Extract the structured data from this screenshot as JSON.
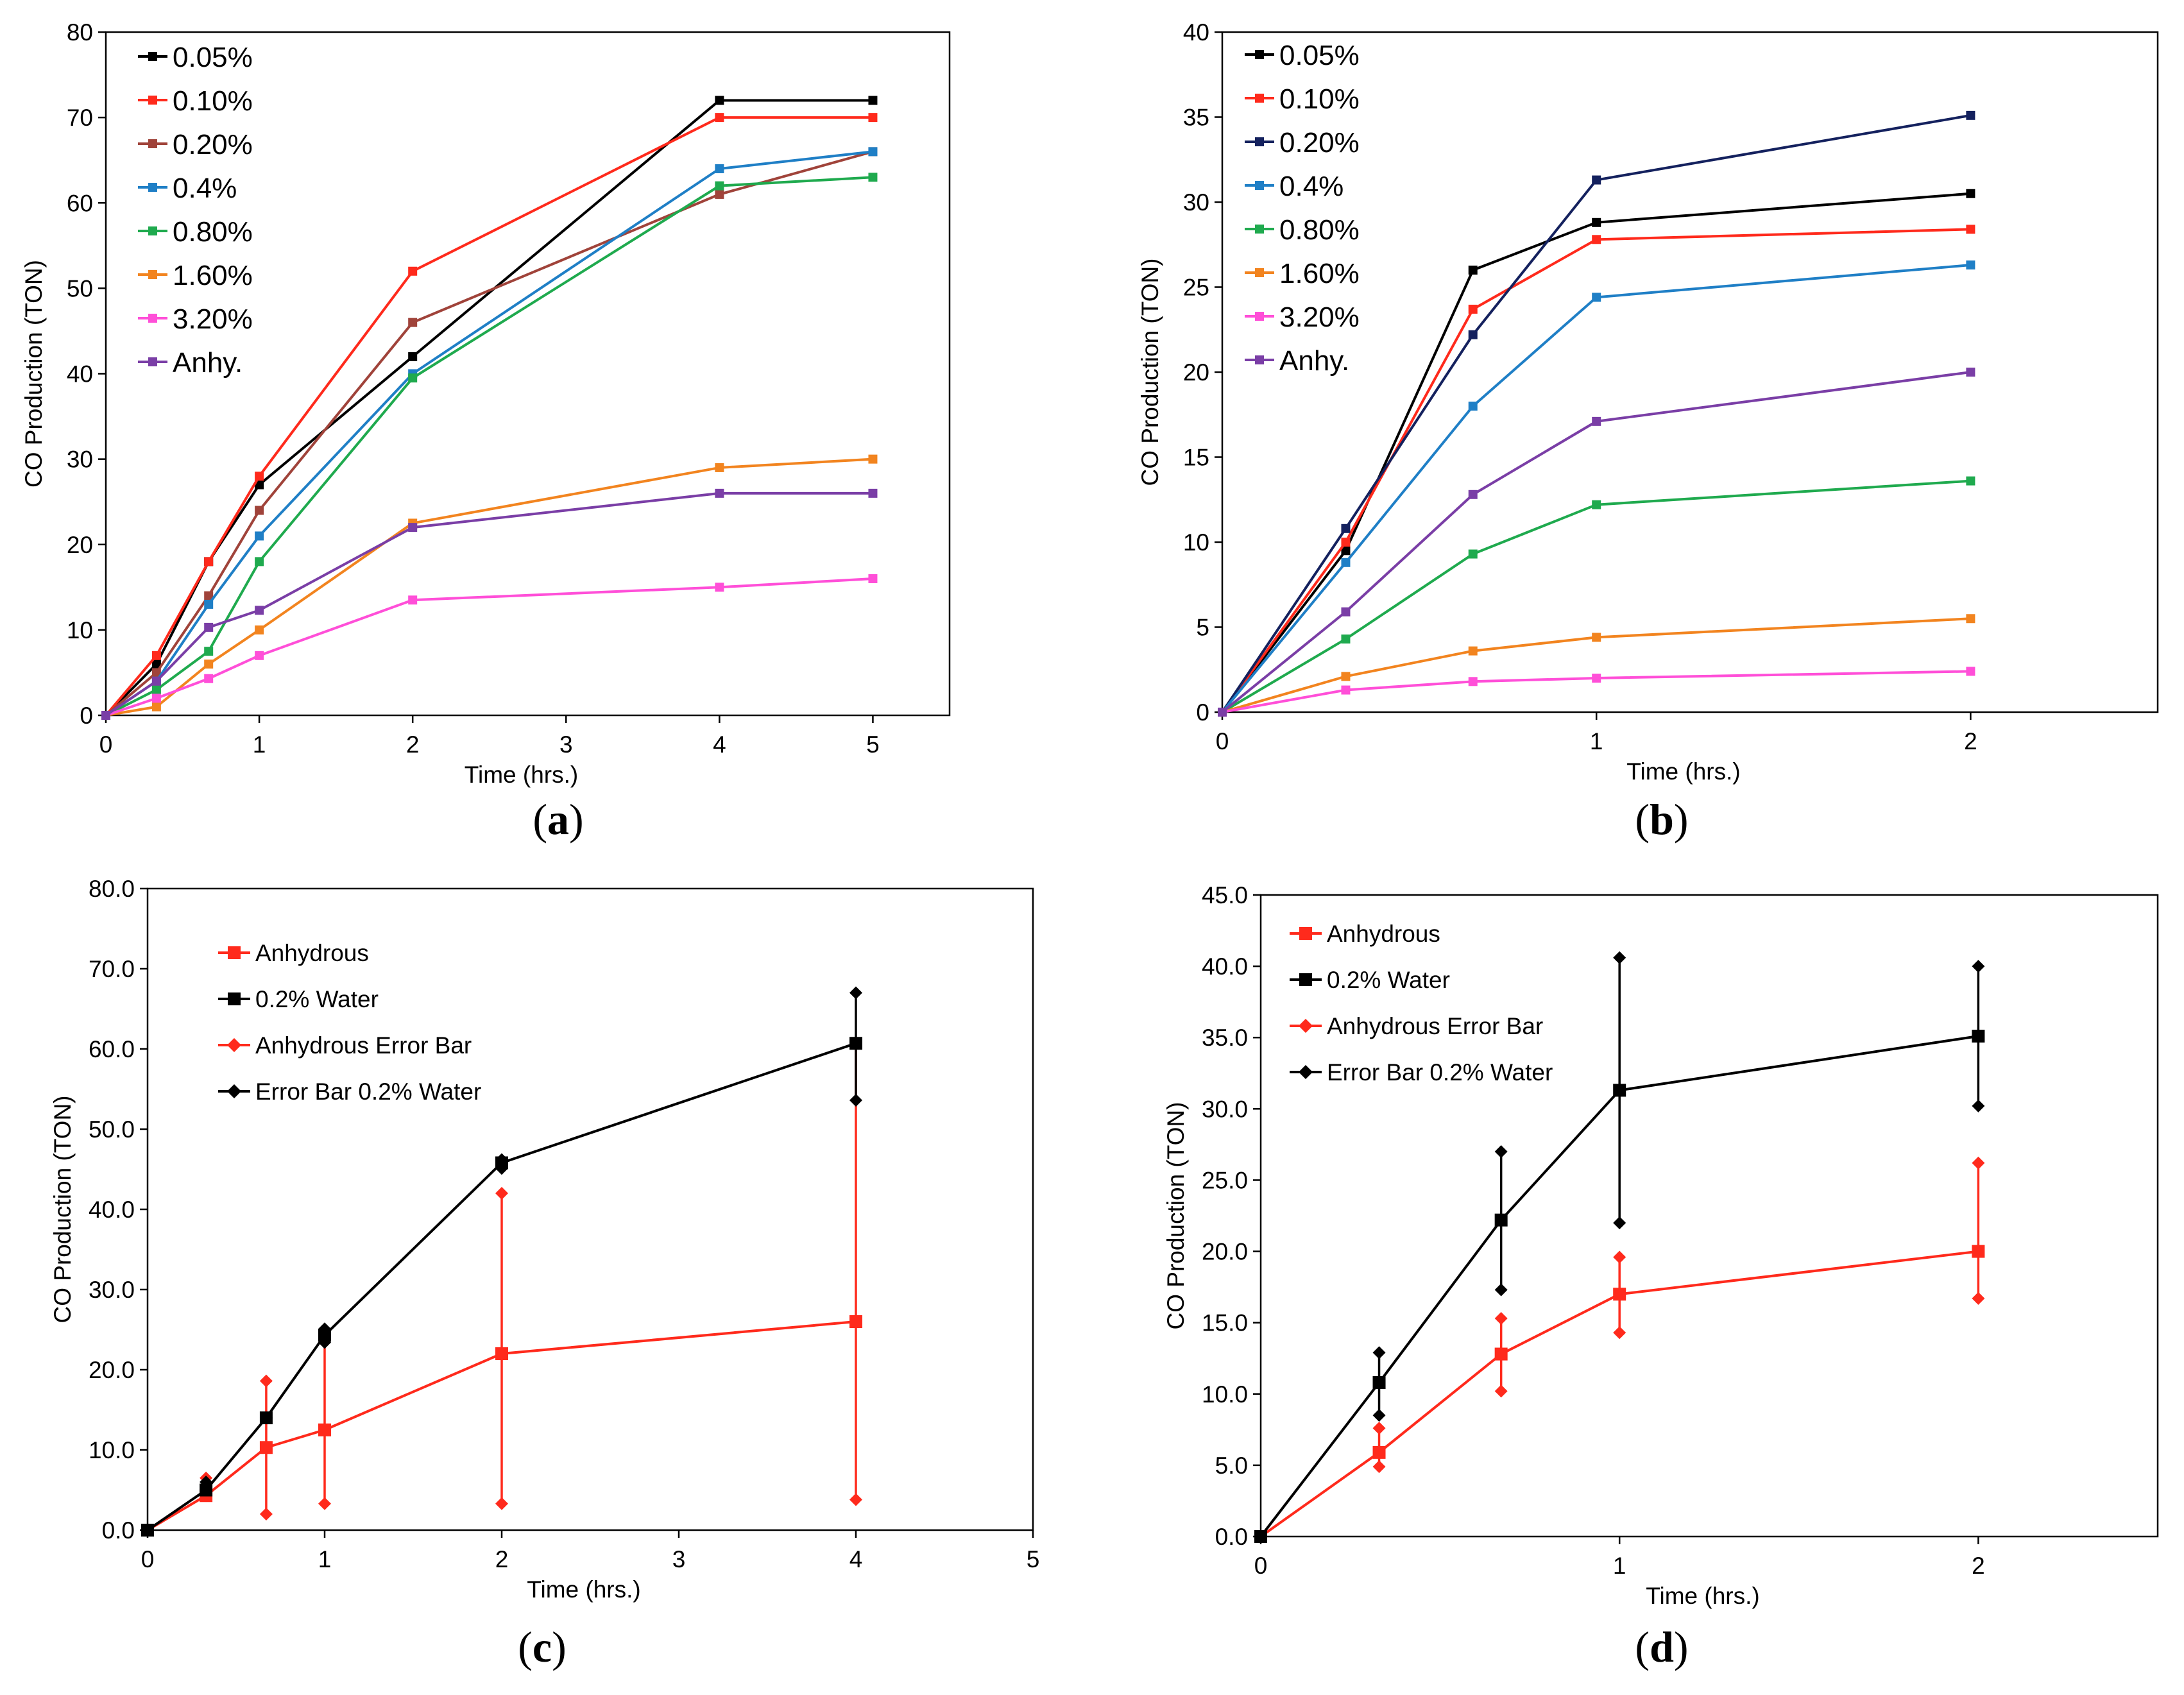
{
  "chart_data": [
    {
      "id": "a",
      "type": "line",
      "panel_label": "a",
      "xlabel": "Time (hrs.)",
      "ylabel": "CO Production (TON)",
      "xlim": [
        0,
        5.5
      ],
      "ylim": [
        0,
        80
      ],
      "xticks": [
        0,
        1,
        2,
        3,
        4,
        5
      ],
      "yticks": [
        0,
        10,
        20,
        30,
        40,
        50,
        60,
        70,
        80
      ],
      "ytick_labels": [
        "0",
        "10",
        "20",
        "30",
        "40",
        "50",
        "60",
        "70",
        "80"
      ],
      "legend_position": "top-left",
      "x": [
        0,
        0.33,
        0.67,
        1,
        2,
        4,
        5
      ],
      "series": [
        {
          "name": "0.05%",
          "color": "#000000",
          "values": [
            0,
            6,
            18,
            27,
            42,
            72,
            72
          ]
        },
        {
          "name": "0.10%",
          "color": "#ff2a1c",
          "values": [
            0,
            7,
            18,
            28,
            52,
            70,
            70
          ]
        },
        {
          "name": "0.20%",
          "color": "#a0433a",
          "values": [
            0,
            5,
            14,
            24,
            46,
            61,
            66
          ]
        },
        {
          "name": "0.4%",
          "color": "#1f7fc6",
          "values": [
            0,
            4,
            13,
            21,
            40,
            64,
            66
          ]
        },
        {
          "name": "0.80%",
          "color": "#1faa4e",
          "values": [
            0,
            3,
            7.5,
            18,
            39.5,
            62,
            63
          ]
        },
        {
          "name": "1.60%",
          "color": "#f2841f",
          "values": [
            0,
            1,
            6,
            10,
            22.5,
            29,
            30
          ]
        },
        {
          "name": "3.20%",
          "color": "#ff4fd8",
          "values": [
            0,
            2,
            4.3,
            7,
            13.5,
            15,
            16
          ]
        },
        {
          "name": "Anhy.",
          "color": "#7a3ea6",
          "values": [
            0,
            4,
            10.3,
            12.3,
            22,
            26,
            26
          ]
        }
      ]
    },
    {
      "id": "b",
      "type": "line",
      "panel_label": "b",
      "xlabel": "Time (hrs.)",
      "ylabel": "CO Production (TON)",
      "xlim": [
        0,
        2.5
      ],
      "ylim": [
        0,
        40
      ],
      "xticks": [
        0,
        1,
        2
      ],
      "yticks": [
        0,
        5,
        10,
        15,
        20,
        25,
        30,
        35,
        40
      ],
      "ytick_labels": [
        "0",
        "5",
        "10",
        "15",
        "20",
        "25",
        "30",
        "35",
        "40"
      ],
      "legend_position": "top-left",
      "x": [
        0,
        0.33,
        0.67,
        1,
        2
      ],
      "series": [
        {
          "name": "0.05%",
          "color": "#000000",
          "values": [
            0,
            9.5,
            26,
            28.8,
            30.5
          ]
        },
        {
          "name": "0.10%",
          "color": "#ff2a1c",
          "values": [
            0,
            10,
            23.7,
            27.8,
            28.4
          ]
        },
        {
          "name": "0.20%",
          "color": "#14215e",
          "values": [
            0,
            10.8,
            22.2,
            31.3,
            35.1
          ]
        },
        {
          "name": "0.4%",
          "color": "#1f7fc6",
          "values": [
            0,
            8.8,
            18,
            24.4,
            26.3
          ]
        },
        {
          "name": "0.80%",
          "color": "#1faa4e",
          "values": [
            0,
            4.3,
            9.3,
            12.2,
            13.6
          ]
        },
        {
          "name": "1.60%",
          "color": "#f2841f",
          "values": [
            0,
            2.1,
            3.6,
            4.4,
            5.5
          ]
        },
        {
          "name": "3.20%",
          "color": "#ff4fd8",
          "values": [
            0,
            1.3,
            1.8,
            2,
            2.4
          ]
        },
        {
          "name": "Anhy.",
          "color": "#7a3ea6",
          "values": [
            0,
            5.9,
            12.8,
            17.1,
            20
          ]
        }
      ]
    },
    {
      "id": "c",
      "type": "line",
      "panel_label": "c",
      "xlabel": "Time (hrs.)",
      "ylabel": "CO Production (TON)",
      "xlim": [
        0,
        5
      ],
      "ylim": [
        0,
        80
      ],
      "xticks": [
        0,
        1,
        2,
        3,
        4,
        5
      ],
      "yticks": [
        0,
        10,
        20,
        30,
        40,
        50,
        60,
        70,
        80
      ],
      "ytick_labels": [
        "0.0",
        "10.0",
        "20.0",
        "30.0",
        "40.0",
        "50.0",
        "60.0",
        "70.0",
        "80.0"
      ],
      "legend_position": "top-left",
      "x": [
        0,
        0.33,
        0.67,
        1,
        2,
        4
      ],
      "series": [
        {
          "name": "Anhydrous",
          "color": "#ff2a1c",
          "values": [
            0,
            4.3,
            10.3,
            12.5,
            22,
            26
          ]
        },
        {
          "name": "0.2% Water",
          "color": "#000000",
          "values": [
            0,
            5,
            14,
            24.3,
            45.8,
            60.7
          ]
        }
      ],
      "error_bars": [
        {
          "name": "Anhydrous Error Bar",
          "color": "#ff2a1c",
          "low": [
            0,
            4.3,
            2,
            3.3,
            3.3,
            3.8
          ],
          "high": [
            0,
            6.5,
            18.6,
            24.3,
            42,
            60.7
          ]
        },
        {
          "name": "Error Bar 0.2% Water",
          "color": "#000000",
          "low": [
            0,
            4.5,
            14,
            23.4,
            45.1,
            53.6
          ],
          "high": [
            0,
            6,
            14,
            25.1,
            46.2,
            67
          ]
        }
      ]
    },
    {
      "id": "d",
      "type": "line",
      "panel_label": "d",
      "xlabel": "Time (hrs.)",
      "ylabel": "CO Production (TON)",
      "xlim": [
        0,
        2.5
      ],
      "ylim": [
        0,
        45
      ],
      "xticks": [
        0,
        1,
        2
      ],
      "yticks": [
        0,
        5,
        10,
        15,
        20,
        25,
        30,
        35,
        40,
        45
      ],
      "ytick_labels": [
        "0.0",
        "5.0",
        "10.0",
        "15.0",
        "20.0",
        "25.0",
        "30.0",
        "35.0",
        "40.0",
        "45.0"
      ],
      "legend_position": "top-left",
      "x": [
        0,
        0.33,
        0.67,
        1,
        2
      ],
      "series": [
        {
          "name": "Anhydrous",
          "color": "#ff2a1c",
          "values": [
            0,
            5.9,
            12.8,
            17,
            20
          ]
        },
        {
          "name": "0.2% Water",
          "color": "#000000",
          "values": [
            0,
            10.8,
            22.2,
            31.3,
            35.1
          ]
        }
      ],
      "error_bars": [
        {
          "name": "Anhydrous Error Bar",
          "color": "#ff2a1c",
          "low": [
            0,
            4.9,
            10.2,
            14.3,
            16.7
          ],
          "high": [
            0,
            7.6,
            15.3,
            19.6,
            26.2
          ]
        },
        {
          "name": "Error Bar 0.2% Water",
          "color": "#000000",
          "low": [
            0,
            8.5,
            17.3,
            22,
            30.2
          ],
          "high": [
            0,
            12.9,
            27,
            40.6,
            40
          ]
        }
      ]
    }
  ]
}
